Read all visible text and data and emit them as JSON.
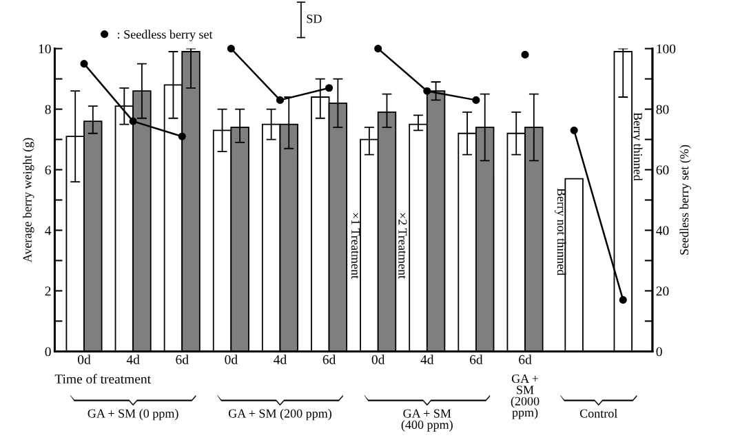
{
  "chart_data": {
    "type": "bar",
    "xlabel": "Time of treatment",
    "ylabel": "Average berry weight (g)",
    "y2label": "Seedless berry set (%)",
    "categories": [
      "0d",
      "4d",
      "6d",
      "0d",
      "4d",
      "6d",
      "0d",
      "4d",
      "6d",
      "6d",
      null,
      null
    ],
    "series": [
      {
        "name": "×1 Treatment",
        "color": "#ffffff",
        "values": [
          7.1,
          8.1,
          8.8,
          7.3,
          7.5,
          8.4,
          7.0,
          7.5,
          7.2,
          7.2,
          null,
          null
        ],
        "errors": [
          [
            5.6,
            8.6
          ],
          [
            7.5,
            8.7
          ],
          [
            7.7,
            9.9
          ],
          [
            6.6,
            8.0
          ],
          [
            7.0,
            8.0
          ],
          [
            7.7,
            9.0
          ],
          [
            6.5,
            7.4
          ],
          [
            7.3,
            7.8
          ],
          [
            6.5,
            7.9
          ],
          [
            6.5,
            7.9
          ],
          null,
          null
        ]
      },
      {
        "name": "×2 Treatment",
        "color": "#7f7f7f",
        "values": [
          7.6,
          8.6,
          9.9,
          7.4,
          7.5,
          8.2,
          7.9,
          8.6,
          7.4,
          7.4,
          null,
          null
        ],
        "errors": [
          [
            7.2,
            8.1
          ],
          [
            7.7,
            9.5
          ],
          [
            8.7,
            10.0
          ],
          [
            6.9,
            8.0
          ],
          [
            6.7,
            8.4
          ],
          [
            7.4,
            9.0
          ],
          [
            7.4,
            8.5
          ],
          [
            8.3,
            8.9
          ],
          [
            6.3,
            8.5
          ],
          [
            6.3,
            8.5
          ],
          null,
          null
        ]
      },
      {
        "color": "#ffffff",
        "values": [
          null,
          null,
          null,
          null,
          null,
          null,
          null,
          null,
          null,
          null,
          5.7,
          9.9
        ],
        "errors": [
          null,
          null,
          null,
          null,
          null,
          null,
          null,
          null,
          null,
          null,
          null,
          [
            8.4,
            10.0
          ]
        ]
      },
      {
        "name": ": Seedless berry set",
        "type": "line",
        "axis": "y2",
        "color": "#000000",
        "marker": "circle",
        "values": [
          95,
          76,
          71,
          null,
          null,
          null,
          null,
          null,
          null,
          null,
          null,
          null
        ]
      },
      {
        "type": "line",
        "axis": "y2",
        "color": "#000000",
        "marker": "circle",
        "values": [
          null,
          null,
          null,
          100,
          83,
          87,
          null,
          null,
          null,
          null,
          null,
          null
        ]
      },
      {
        "type": "line",
        "axis": "y2",
        "color": "#000000",
        "marker": "circle",
        "values": [
          null,
          null,
          null,
          null,
          null,
          null,
          100,
          86,
          83,
          null,
          null,
          null
        ]
      },
      {
        "type": "line",
        "axis": "y2",
        "color": "#000000",
        "marker": "circle",
        "values": [
          null,
          null,
          null,
          null,
          null,
          null,
          null,
          null,
          null,
          98,
          null,
          null
        ]
      },
      {
        "type": "line",
        "axis": "y2",
        "color": "#000000",
        "marker": "circle",
        "values": [
          null,
          null,
          null,
          null,
          null,
          null,
          null,
          null,
          null,
          null,
          73,
          17
        ]
      }
    ],
    "ylim": [
      0,
      10
    ],
    "yticks": [
      0,
      {
        "value": 1,
        "label": null
      },
      2,
      {
        "value": 3,
        "label": null
      },
      4,
      {
        "value": 5,
        "label": null
      },
      6,
      {
        "value": 7,
        "label": null
      },
      8,
      {
        "value": 9,
        "label": null
      },
      10
    ],
    "y2lim": [
      0,
      100
    ],
    "y2ticks": [
      0,
      {
        "value": 10,
        "label": null
      },
      20,
      {
        "value": 30,
        "label": null
      },
      40,
      {
        "value": 50,
        "label": null
      },
      60,
      {
        "value": 70,
        "label": null
      },
      80,
      {
        "value": 90,
        "label": null
      },
      100
    ],
    "legend": "top left",
    "grid": false,
    "annotations": [
      "GA + SM (0 ppm)",
      "GA + SM (200 ppm)",
      "GA + SM\n(400 ppm)",
      "GA +\nSM\n(2000\nppm)",
      "Control",
      "SD",
      "Berry not thinned",
      "Berry thinned"
    ]
  }
}
